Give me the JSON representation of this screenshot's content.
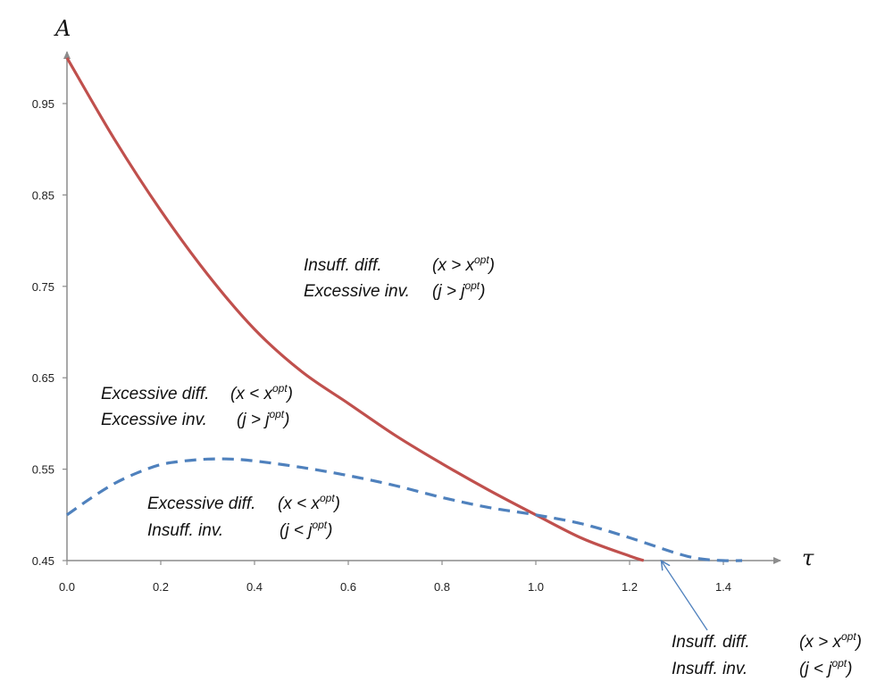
{
  "chart_data": {
    "type": "line",
    "xlabel": "τ",
    "ylabel": "A",
    "xlim": [
      0.0,
      1.45
    ],
    "ylim": [
      0.45,
      1.0
    ],
    "x_ticks": [
      "0.0",
      "0.2",
      "0.4",
      "0.6",
      "0.8",
      "1.0",
      "1.2",
      "1.4"
    ],
    "y_ticks": [
      "0.45",
      "0.55",
      "0.65",
      "0.75",
      "0.85",
      "0.95"
    ],
    "grid": false,
    "legend": "none",
    "series": [
      {
        "color": "#c0504d",
        "style": "solid",
        "x": [
          0.0,
          0.1,
          0.2,
          0.3,
          0.4,
          0.5,
          0.6,
          0.7,
          0.8,
          0.9,
          1.0,
          1.1,
          1.2,
          1.23
        ],
        "y": [
          1.0,
          0.912,
          0.833,
          0.763,
          0.703,
          0.657,
          0.622,
          0.587,
          0.556,
          0.527,
          0.5,
          0.474,
          0.455,
          0.45
        ]
      },
      {
        "color": "#4f81bd",
        "style": "dashed",
        "x": [
          0.0,
          0.05,
          0.1,
          0.15,
          0.2,
          0.25,
          0.3,
          0.35,
          0.4,
          0.5,
          0.6,
          0.7,
          0.8,
          0.9,
          1.0,
          1.1,
          1.2,
          1.3,
          1.35,
          1.4,
          1.44
        ],
        "y": [
          0.5,
          0.518,
          0.534,
          0.546,
          0.555,
          0.559,
          0.561,
          0.561,
          0.559,
          0.552,
          0.543,
          0.532,
          0.519,
          0.508,
          0.5,
          0.49,
          0.475,
          0.458,
          0.452,
          0.45,
          0.45
        ]
      }
    ],
    "annotations": [
      {
        "line1": "Insuff. diff.",
        "rel1": "(x > x",
        "sup1": "opt",
        "end1": ")",
        "line2": "Excessive inv.",
        "rel2": "(j > j",
        "sup2": "opt",
        "end2": ")"
      },
      {
        "line1": "Excessive diff.",
        "rel1": "(x < x",
        "sup1": "opt",
        "end1": ")",
        "line2": "Excessive inv.",
        "rel2": "(j > j",
        "sup2": "opt",
        "end2": ")"
      },
      {
        "line1": "Excessive diff.",
        "rel1": "(x < x",
        "sup1": "opt",
        "end1": ")",
        "line2": "Insuff. inv.",
        "rel2": "(j < j",
        "sup2": "opt",
        "end2": ")"
      },
      {
        "line1": "Insuff. diff.",
        "rel1": "(x > x",
        "sup1": "opt",
        "end1": ")",
        "line2": "Insuff. inv.",
        "rel2": "(j < j",
        "sup2": "opt",
        "end2": ")"
      }
    ]
  }
}
